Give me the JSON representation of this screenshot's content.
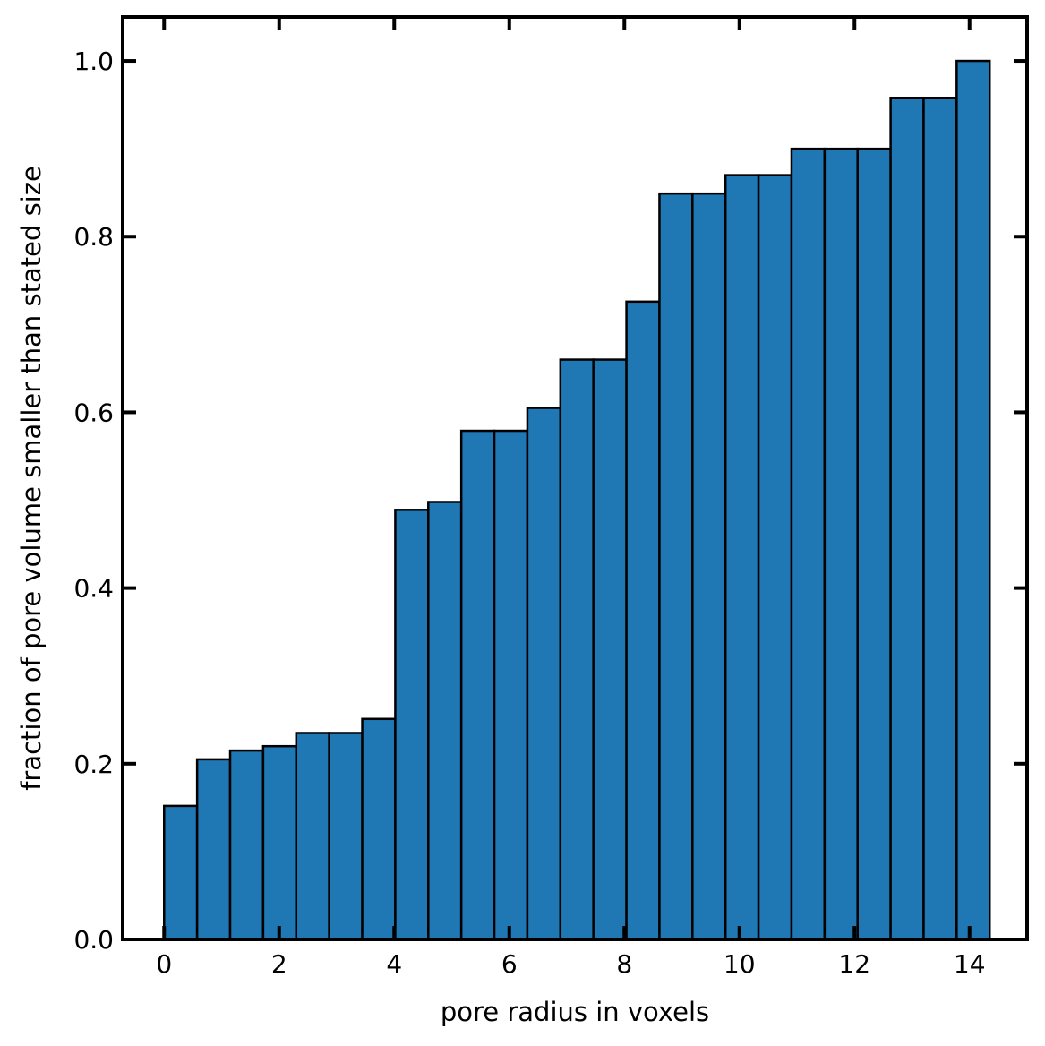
{
  "chart_data": {
    "type": "bar",
    "xlabel": "pore radius in voxels",
    "ylabel": "fraction of pore volume smaller than stated size",
    "xlim": [
      -0.72,
      15.0
    ],
    "ylim": [
      0,
      1.05
    ],
    "bin_width": 0.574,
    "x_ticks": [
      0,
      2,
      4,
      6,
      8,
      10,
      12,
      14
    ],
    "y_ticks": [
      0.0,
      0.2,
      0.4,
      0.6,
      0.8,
      1.0
    ],
    "x_tick_labels": [
      "0",
      "2",
      "4",
      "6",
      "8",
      "10",
      "12",
      "14"
    ],
    "y_tick_labels": [
      "0.0",
      "0.2",
      "0.4",
      "0.6",
      "0.8",
      "1.0"
    ],
    "bin_starts": [
      0.0,
      0.574,
      1.148,
      1.722,
      2.296,
      2.87,
      3.444,
      4.018,
      4.592,
      5.166,
      5.74,
      6.314,
      6.888,
      7.462,
      8.036,
      8.61,
      9.184,
      9.758,
      10.332,
      10.906,
      11.48,
      12.054,
      12.628,
      13.202,
      13.776
    ],
    "values": [
      0.152,
      0.205,
      0.215,
      0.22,
      0.235,
      0.235,
      0.251,
      0.489,
      0.498,
      0.579,
      0.579,
      0.605,
      0.66,
      0.66,
      0.726,
      0.849,
      0.849,
      0.87,
      0.87,
      0.9,
      0.9,
      0.9,
      0.958,
      0.958,
      1.0
    ],
    "bar_color": "#1f77b4",
    "edge_color": "#000000",
    "grid": false,
    "legend": "none"
  }
}
